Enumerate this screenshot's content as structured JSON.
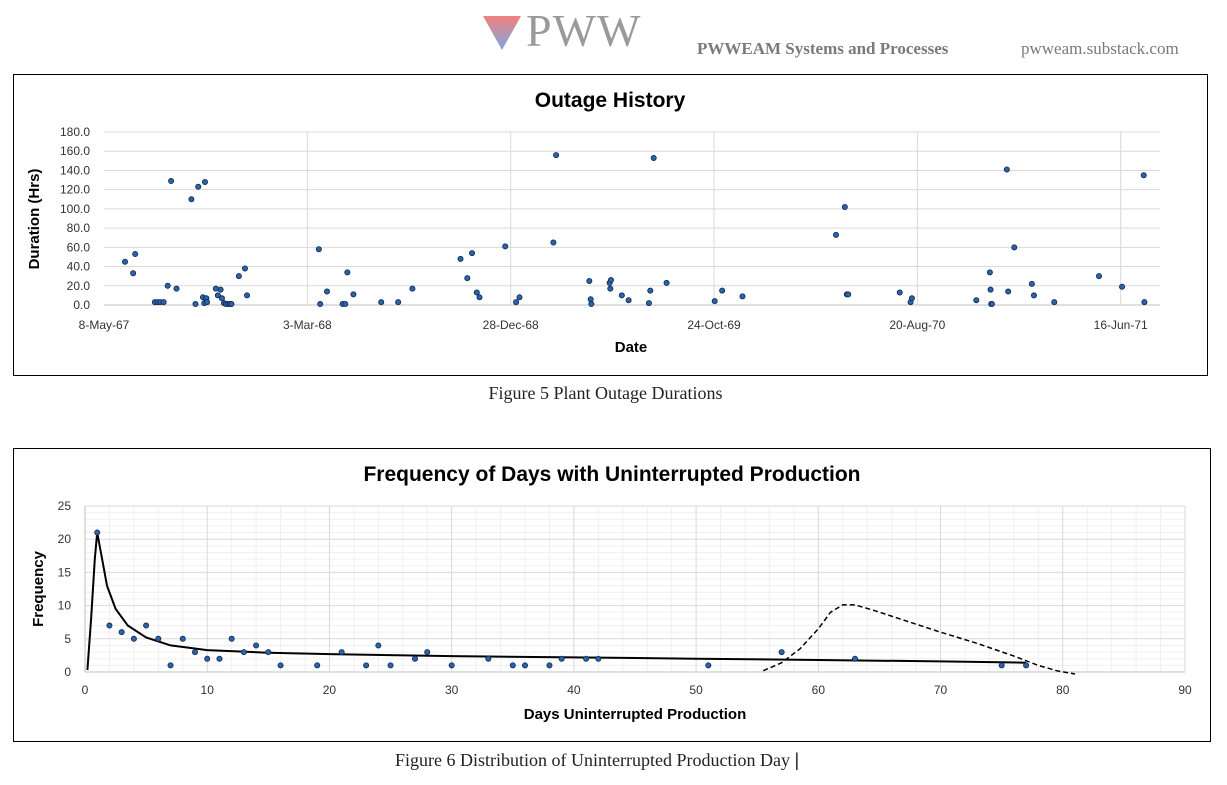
{
  "header": {
    "logo_text": "PWW",
    "tagline": "PWWEAM Systems and Processes",
    "site": "pwweam.substack.com",
    "logo_colors": {
      "top": "#f08080",
      "bottom": "#7ea7e0"
    }
  },
  "captions": {
    "figure5": "Figure 5 Plant Outage Durations",
    "figure6": "Figure 6 Distribution of Uninterrupted Production Day",
    "cursor": "|"
  },
  "chart_data": [
    {
      "type": "scatter",
      "title": "Outage History",
      "xlabel": "Date",
      "ylabel": "Duration (Hrs)",
      "x_ticks": [
        "8-May-67",
        "3-Mar-68",
        "28-Dec-68",
        "24-Oct-69",
        "20-Aug-70",
        "16-Jun-71"
      ],
      "y_ticks": [
        "0.0",
        "20.0",
        "40.0",
        "60.0",
        "80.0",
        "100.0",
        "120.0",
        "140.0",
        "160.0",
        "180.0"
      ],
      "xlim": [
        "1967-05-08",
        "1971-08-13"
      ],
      "ylim": [
        0,
        180
      ],
      "grid": true,
      "marker_color": "#2e62a6",
      "points": [
        {
          "x": "1967-06-08",
          "y": 45
        },
        {
          "x": "1967-06-20",
          "y": 33
        },
        {
          "x": "1967-06-23",
          "y": 53
        },
        {
          "x": "1967-07-22",
          "y": 3
        },
        {
          "x": "1967-07-26",
          "y": 3
        },
        {
          "x": "1967-07-30",
          "y": 3
        },
        {
          "x": "1967-08-04",
          "y": 3
        },
        {
          "x": "1967-08-10",
          "y": 20
        },
        {
          "x": "1967-08-15",
          "y": 129
        },
        {
          "x": "1967-08-23",
          "y": 17
        },
        {
          "x": "1967-09-14",
          "y": 110
        },
        {
          "x": "1967-09-20",
          "y": 1
        },
        {
          "x": "1967-09-24",
          "y": 123
        },
        {
          "x": "1967-10-01",
          "y": 8
        },
        {
          "x": "1967-10-03",
          "y": 2
        },
        {
          "x": "1967-10-04",
          "y": 128
        },
        {
          "x": "1967-10-06",
          "y": 7
        },
        {
          "x": "1967-10-07",
          "y": 3
        },
        {
          "x": "1967-10-20",
          "y": 17
        },
        {
          "x": "1967-10-23",
          "y": 10
        },
        {
          "x": "1967-10-27",
          "y": 16
        },
        {
          "x": "1967-10-29",
          "y": 7
        },
        {
          "x": "1967-11-01",
          "y": 2
        },
        {
          "x": "1967-11-04",
          "y": 1
        },
        {
          "x": "1967-11-07",
          "y": 1
        },
        {
          "x": "1967-11-10",
          "y": 1
        },
        {
          "x": "1967-11-12",
          "y": 1
        },
        {
          "x": "1967-11-23",
          "y": 30
        },
        {
          "x": "1967-12-02",
          "y": 38
        },
        {
          "x": "1967-12-05",
          "y": 10
        },
        {
          "x": "1968-03-20",
          "y": 58
        },
        {
          "x": "1968-03-22",
          "y": 1
        },
        {
          "x": "1968-04-01",
          "y": 14
        },
        {
          "x": "1968-04-24",
          "y": 1
        },
        {
          "x": "1968-04-28",
          "y": 1
        },
        {
          "x": "1968-05-01",
          "y": 34
        },
        {
          "x": "1968-05-10",
          "y": 11
        },
        {
          "x": "1968-06-20",
          "y": 3
        },
        {
          "x": "1968-07-15",
          "y": 3
        },
        {
          "x": "1968-08-05",
          "y": 17
        },
        {
          "x": "1968-10-15",
          "y": 48
        },
        {
          "x": "1968-10-25",
          "y": 28
        },
        {
          "x": "1968-11-01",
          "y": 54
        },
        {
          "x": "1968-11-08",
          "y": 13
        },
        {
          "x": "1968-11-12",
          "y": 8
        },
        {
          "x": "1968-12-20",
          "y": 61
        },
        {
          "x": "1969-01-05",
          "y": 3
        },
        {
          "x": "1969-01-10",
          "y": 8
        },
        {
          "x": "1969-03-01",
          "y": 65
        },
        {
          "x": "1969-03-05",
          "y": 156
        },
        {
          "x": "1969-04-23",
          "y": 25
        },
        {
          "x": "1969-04-25",
          "y": 6
        },
        {
          "x": "1969-04-26",
          "y": 1
        },
        {
          "x": "1969-05-23",
          "y": 23
        },
        {
          "x": "1969-05-24",
          "y": 17
        },
        {
          "x": "1969-05-25",
          "y": 26
        },
        {
          "x": "1969-06-10",
          "y": 10
        },
        {
          "x": "1969-06-20",
          "y": 5
        },
        {
          "x": "1969-07-20",
          "y": 2
        },
        {
          "x": "1969-07-22",
          "y": 15
        },
        {
          "x": "1969-07-27",
          "y": 153
        },
        {
          "x": "1969-08-15",
          "y": 23
        },
        {
          "x": "1969-10-25",
          "y": 4
        },
        {
          "x": "1969-11-05",
          "y": 15
        },
        {
          "x": "1969-12-05",
          "y": 9
        },
        {
          "x": "1970-04-22",
          "y": 73
        },
        {
          "x": "1970-05-05",
          "y": 102
        },
        {
          "x": "1970-05-08",
          "y": 11
        },
        {
          "x": "1970-05-10",
          "y": 11
        },
        {
          "x": "1970-07-25",
          "y": 13
        },
        {
          "x": "1970-08-10",
          "y": 3
        },
        {
          "x": "1970-08-12",
          "y": 7
        },
        {
          "x": "1970-11-15",
          "y": 5
        },
        {
          "x": "1970-12-05",
          "y": 34
        },
        {
          "x": "1970-12-06",
          "y": 16
        },
        {
          "x": "1970-12-07",
          "y": 1
        },
        {
          "x": "1970-12-08",
          "y": 1
        },
        {
          "x": "1970-12-30",
          "y": 141
        },
        {
          "x": "1971-01-01",
          "y": 14
        },
        {
          "x": "1971-01-10",
          "y": 60
        },
        {
          "x": "1971-02-05",
          "y": 22
        },
        {
          "x": "1971-02-08",
          "y": 10
        },
        {
          "x": "1971-03-10",
          "y": 3
        },
        {
          "x": "1971-05-15",
          "y": 30
        },
        {
          "x": "1971-06-18",
          "y": 19
        },
        {
          "x": "1971-07-20",
          "y": 135
        },
        {
          "x": "1971-07-21",
          "y": 3
        }
      ]
    },
    {
      "type": "scatter",
      "title": "Frequency of Days with Uninterrupted Production",
      "xlabel": "Days Uninterrupted Production",
      "ylabel": "Frequency",
      "x_ticks": [
        "0",
        "10",
        "20",
        "30",
        "40",
        "50",
        "60",
        "70",
        "80",
        "90"
      ],
      "y_ticks": [
        "0",
        "5",
        "10",
        "15",
        "20",
        "25"
      ],
      "xlim": [
        0,
        90
      ],
      "ylim": [
        0,
        25
      ],
      "grid": true,
      "marker_color": "#2e62a6",
      "points": [
        {
          "x": 1,
          "y": 21
        },
        {
          "x": 2,
          "y": 7
        },
        {
          "x": 3,
          "y": 6
        },
        {
          "x": 4,
          "y": 5
        },
        {
          "x": 5,
          "y": 7
        },
        {
          "x": 6,
          "y": 5
        },
        {
          "x": 7,
          "y": 1
        },
        {
          "x": 8,
          "y": 5
        },
        {
          "x": 9,
          "y": 3
        },
        {
          "x": 10,
          "y": 2
        },
        {
          "x": 11,
          "y": 2
        },
        {
          "x": 12,
          "y": 5
        },
        {
          "x": 13,
          "y": 3
        },
        {
          "x": 14,
          "y": 4
        },
        {
          "x": 15,
          "y": 3
        },
        {
          "x": 16,
          "y": 1
        },
        {
          "x": 19,
          "y": 1
        },
        {
          "x": 21,
          "y": 3
        },
        {
          "x": 23,
          "y": 1
        },
        {
          "x": 24,
          "y": 4
        },
        {
          "x": 25,
          "y": 1
        },
        {
          "x": 27,
          "y": 2
        },
        {
          "x": 28,
          "y": 3
        },
        {
          "x": 30,
          "y": 1
        },
        {
          "x": 33,
          "y": 2
        },
        {
          "x": 35,
          "y": 1
        },
        {
          "x": 36,
          "y": 1
        },
        {
          "x": 38,
          "y": 1
        },
        {
          "x": 39,
          "y": 2
        },
        {
          "x": 41,
          "y": 2
        },
        {
          "x": 42,
          "y": 2
        },
        {
          "x": 51,
          "y": 1
        },
        {
          "x": 57,
          "y": 3
        },
        {
          "x": 63,
          "y": 2
        },
        {
          "x": 75,
          "y": 1
        },
        {
          "x": 77,
          "y": 1
        }
      ],
      "fit_curve": [
        {
          "x": 0.2,
          "y": 0.3
        },
        {
          "x": 0.5,
          "y": 8
        },
        {
          "x": 0.8,
          "y": 17
        },
        {
          "x": 1.0,
          "y": 21
        },
        {
          "x": 1.3,
          "y": 18
        },
        {
          "x": 1.8,
          "y": 13
        },
        {
          "x": 2.5,
          "y": 9.5
        },
        {
          "x": 3.5,
          "y": 7
        },
        {
          "x": 5,
          "y": 5.2
        },
        {
          "x": 7,
          "y": 4
        },
        {
          "x": 10,
          "y": 3.3
        },
        {
          "x": 15,
          "y": 2.9
        },
        {
          "x": 20,
          "y": 2.7
        },
        {
          "x": 30,
          "y": 2.4
        },
        {
          "x": 40,
          "y": 2.2
        },
        {
          "x": 50,
          "y": 2.0
        },
        {
          "x": 60,
          "y": 1.8
        },
        {
          "x": 70,
          "y": 1.6
        },
        {
          "x": 77,
          "y": 1.4
        }
      ],
      "dashed_curve": [
        {
          "x": 55.5,
          "y": 0.2
        },
        {
          "x": 57,
          "y": 1.4
        },
        {
          "x": 58.5,
          "y": 3.5
        },
        {
          "x": 60,
          "y": 6.5
        },
        {
          "x": 61,
          "y": 9
        },
        {
          "x": 62,
          "y": 10.1
        },
        {
          "x": 63,
          "y": 10.1
        },
        {
          "x": 64.5,
          "y": 9.3
        },
        {
          "x": 67,
          "y": 7.8
        },
        {
          "x": 70,
          "y": 6.0
        },
        {
          "x": 73,
          "y": 4.3
        },
        {
          "x": 76,
          "y": 2.4
        },
        {
          "x": 78,
          "y": 1.0
        },
        {
          "x": 79.5,
          "y": 0.2
        },
        {
          "x": 81,
          "y": -0.3
        }
      ]
    }
  ]
}
